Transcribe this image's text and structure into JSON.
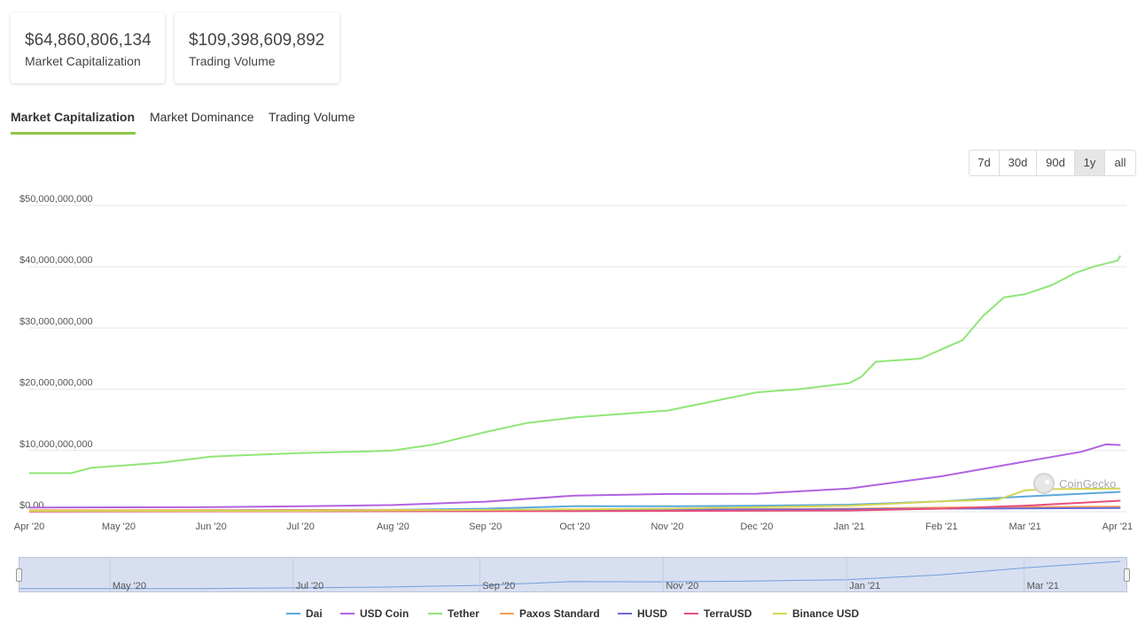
{
  "stats": {
    "market_cap_value": "$64,860,806,134",
    "market_cap_label": "Market Capitalization",
    "volume_value": "$109,398,609,892",
    "volume_label": "Trading Volume"
  },
  "tabs": [
    {
      "label": "Market Capitalization",
      "active": true
    },
    {
      "label": "Market Dominance",
      "active": false
    },
    {
      "label": "Trading Volume",
      "active": false
    }
  ],
  "range_buttons": [
    {
      "label": "7d",
      "active": false
    },
    {
      "label": "30d",
      "active": false
    },
    {
      "label": "90d",
      "active": false
    },
    {
      "label": "1y",
      "active": true
    },
    {
      "label": "all",
      "active": false
    }
  ],
  "watermark": "CoinGecko",
  "navigator_labels": [
    "May '20",
    "Jul '20",
    "Sep '20",
    "Nov '20",
    "Jan '21",
    "Mar '21"
  ],
  "chart_data": {
    "type": "line",
    "ylim": [
      0,
      50000000000
    ],
    "y_ticks": [
      {
        "value": 0,
        "label": "$0.00"
      },
      {
        "value": 10000000000,
        "label": "$10,000,000,000"
      },
      {
        "value": 20000000000,
        "label": "$20,000,000,000"
      },
      {
        "value": 30000000000,
        "label": "$30,000,000,000"
      },
      {
        "value": 40000000000,
        "label": "$40,000,000,000"
      },
      {
        "value": 50000000000,
        "label": "$50,000,000,000"
      }
    ],
    "x_tick_labels": [
      "Apr '20",
      "May '20",
      "Jun '20",
      "Jul '20",
      "Aug '20",
      "Sep '20",
      "Oct '20",
      "Nov '20",
      "Dec '20",
      "Jan '21",
      "Feb '21",
      "Mar '21",
      "Apr '21"
    ],
    "x_tick_dates": [
      "2020-04-01",
      "2020-05-01",
      "2020-06-01",
      "2020-07-01",
      "2020-08-01",
      "2020-09-01",
      "2020-10-01",
      "2020-11-01",
      "2020-12-01",
      "2021-01-01",
      "2021-02-01",
      "2021-03-01",
      "2021-04-01"
    ],
    "x_range": [
      "2020-04-01",
      "2021-04-04"
    ],
    "grid": true,
    "legend_position": "bottom-center",
    "series": [
      {
        "name": "Dai",
        "color": "#5ba8db",
        "points": [
          [
            "2020-04-01",
            120000000
          ],
          [
            "2020-06-01",
            130000000
          ],
          [
            "2020-08-01",
            300000000
          ],
          [
            "2020-09-01",
            500000000
          ],
          [
            "2020-10-01",
            920000000
          ],
          [
            "2020-11-01",
            900000000
          ],
          [
            "2020-12-01",
            1000000000
          ],
          [
            "2021-01-01",
            1150000000
          ],
          [
            "2021-02-01",
            1700000000
          ],
          [
            "2021-03-01",
            2500000000
          ],
          [
            "2021-04-02",
            3250000000
          ]
        ]
      },
      {
        "name": "USD Coin",
        "color": "#b162e0",
        "points": [
          [
            "2020-04-01",
            700000000
          ],
          [
            "2020-05-01",
            720000000
          ],
          [
            "2020-06-01",
            750000000
          ],
          [
            "2020-07-01",
            900000000
          ],
          [
            "2020-08-01",
            1100000000
          ],
          [
            "2020-09-01",
            1650000000
          ],
          [
            "2020-10-01",
            2650000000
          ],
          [
            "2020-11-01",
            2900000000
          ],
          [
            "2020-12-01",
            2950000000
          ],
          [
            "2021-01-01",
            3800000000
          ],
          [
            "2021-02-01",
            5800000000
          ],
          [
            "2021-03-01",
            8200000000
          ],
          [
            "2021-03-20",
            9800000000
          ],
          [
            "2021-03-28",
            11000000000
          ],
          [
            "2021-04-02",
            10900000000
          ]
        ]
      },
      {
        "name": "Tether",
        "color": "#8fe677",
        "points": [
          [
            "2020-04-01",
            6300000000
          ],
          [
            "2020-04-15",
            6300000000
          ],
          [
            "2020-04-22",
            7200000000
          ],
          [
            "2020-05-01",
            7500000000
          ],
          [
            "2020-05-15",
            8000000000
          ],
          [
            "2020-06-01",
            9000000000
          ],
          [
            "2020-07-01",
            9600000000
          ],
          [
            "2020-07-20",
            9800000000
          ],
          [
            "2020-08-01",
            10000000000
          ],
          [
            "2020-08-15",
            11000000000
          ],
          [
            "2020-09-01",
            13000000000
          ],
          [
            "2020-09-15",
            14500000000
          ],
          [
            "2020-10-01",
            15400000000
          ],
          [
            "2020-11-01",
            16500000000
          ],
          [
            "2020-12-01",
            19500000000
          ],
          [
            "2020-12-15",
            20000000000
          ],
          [
            "2021-01-01",
            21000000000
          ],
          [
            "2021-01-05",
            22000000000
          ],
          [
            "2021-01-10",
            24500000000
          ],
          [
            "2021-01-25",
            25000000000
          ],
          [
            "2021-02-01",
            26500000000
          ],
          [
            "2021-02-08",
            28000000000
          ],
          [
            "2021-02-15",
            32000000000
          ],
          [
            "2021-02-22",
            35000000000
          ],
          [
            "2021-03-01",
            35500000000
          ],
          [
            "2021-03-10",
            37000000000
          ],
          [
            "2021-03-18",
            39000000000
          ],
          [
            "2021-03-24",
            40000000000
          ],
          [
            "2021-04-01",
            41000000000
          ],
          [
            "2021-04-02",
            41800000000
          ]
        ]
      },
      {
        "name": "Paxos Standard",
        "color": "#f5a05a",
        "points": [
          [
            "2020-04-01",
            250000000
          ],
          [
            "2020-08-01",
            300000000
          ],
          [
            "2020-10-01",
            250000000
          ],
          [
            "2021-01-01",
            500000000
          ],
          [
            "2021-02-01",
            700000000
          ],
          [
            "2021-04-02",
            850000000
          ]
        ]
      },
      {
        "name": "HUSD",
        "color": "#6b6bd6",
        "points": [
          [
            "2020-04-01",
            100000000
          ],
          [
            "2020-08-01",
            200000000
          ],
          [
            "2020-10-01",
            300000000
          ],
          [
            "2021-01-01",
            400000000
          ],
          [
            "2021-02-01",
            500000000
          ],
          [
            "2021-04-02",
            600000000
          ]
        ]
      },
      {
        "name": "TerraUSD",
        "color": "#e8507a",
        "points": [
          [
            "2020-04-01",
            50000000
          ],
          [
            "2020-10-01",
            100000000
          ],
          [
            "2021-01-01",
            200000000
          ],
          [
            "2021-02-01",
            500000000
          ],
          [
            "2021-03-01",
            1000000000
          ],
          [
            "2021-04-02",
            1800000000
          ]
        ]
      },
      {
        "name": "Binance USD",
        "color": "#d4d455",
        "points": [
          [
            "2020-04-01",
            150000000
          ],
          [
            "2020-07-01",
            150000000
          ],
          [
            "2020-09-01",
            300000000
          ],
          [
            "2020-10-01",
            400000000
          ],
          [
            "2020-11-01",
            500000000
          ],
          [
            "2021-01-01",
            1000000000
          ],
          [
            "2021-02-01",
            1700000000
          ],
          [
            "2021-02-20",
            2000000000
          ],
          [
            "2021-03-01",
            3500000000
          ],
          [
            "2021-03-10",
            3700000000
          ],
          [
            "2021-04-02",
            3800000000
          ]
        ]
      }
    ]
  }
}
